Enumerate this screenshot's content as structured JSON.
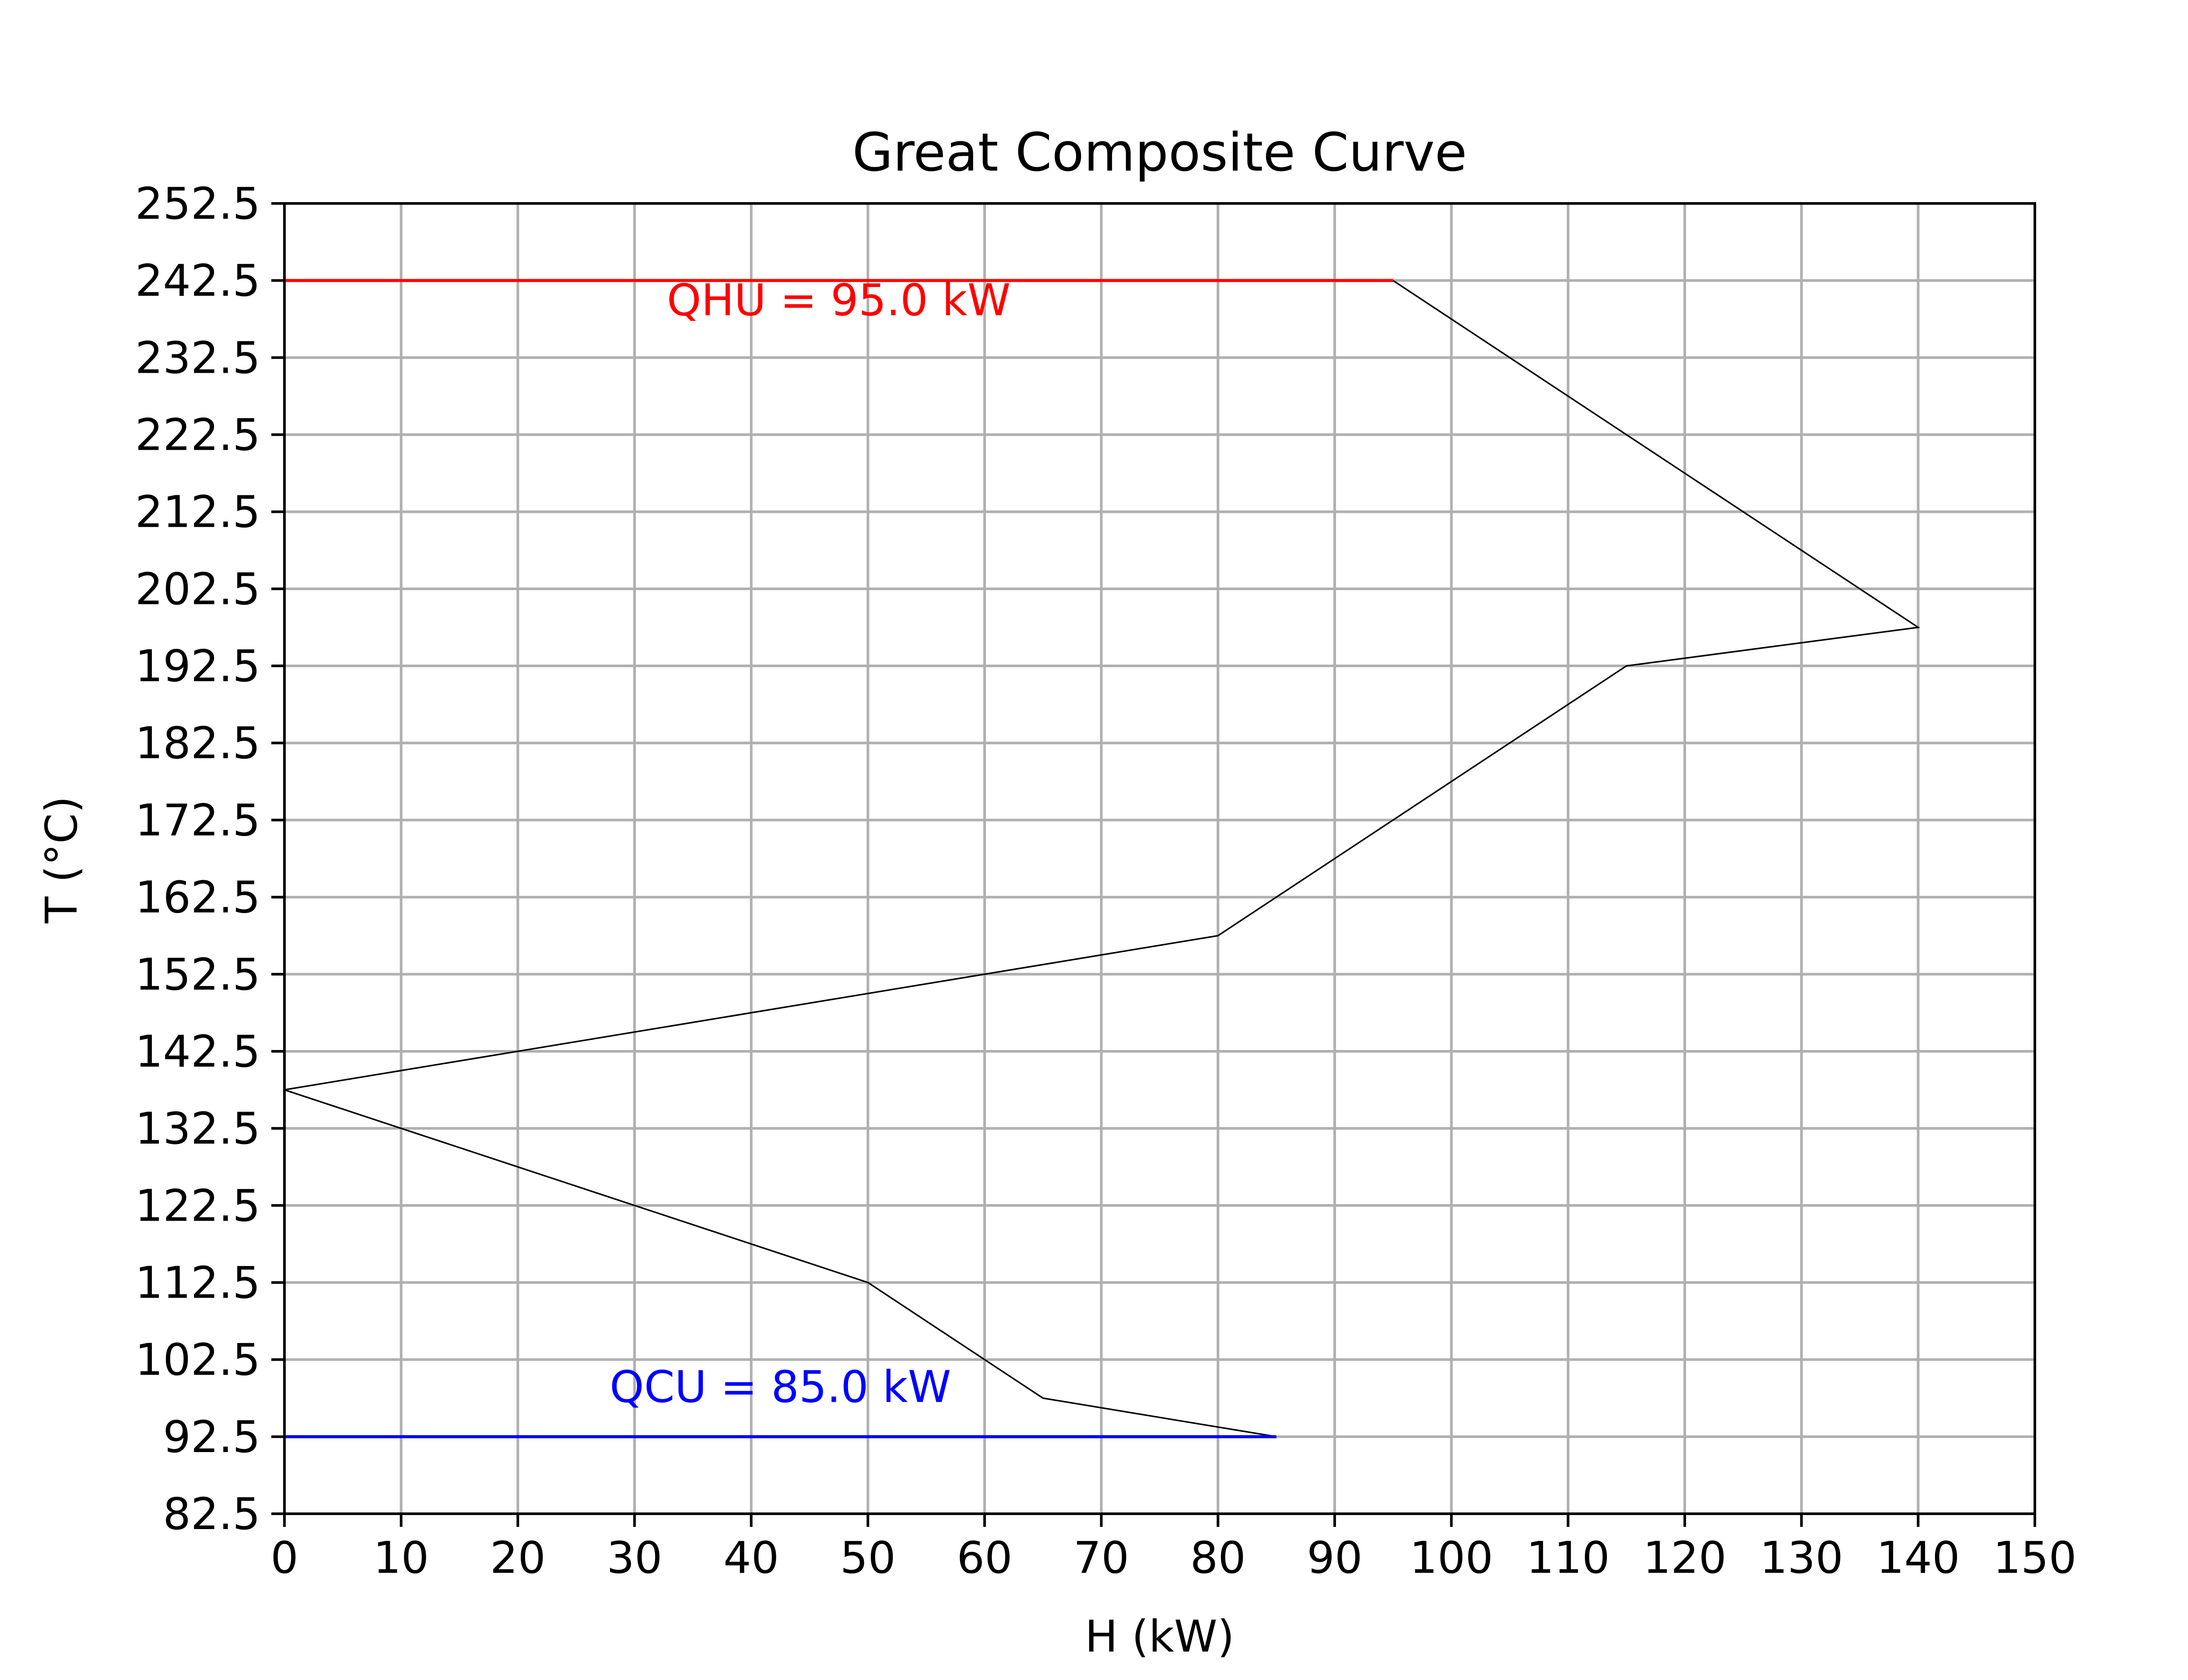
{
  "chart_data": {
    "type": "line",
    "title": "Great Composite Curve",
    "xlabel": "H (kW)",
    "ylabel": "T (°C)",
    "xlim": [
      0,
      150
    ],
    "ylim": [
      82.5,
      252.5
    ],
    "xticks": [
      0,
      10,
      20,
      30,
      40,
      50,
      60,
      70,
      80,
      90,
      100,
      110,
      120,
      130,
      140,
      150
    ],
    "yticks": [
      82.5,
      92.5,
      102.5,
      112.5,
      122.5,
      132.5,
      142.5,
      152.5,
      162.5,
      172.5,
      182.5,
      192.5,
      202.5,
      212.5,
      222.5,
      232.5,
      242.5,
      252.5
    ],
    "grid": true,
    "series": [
      {
        "color": "#000000",
        "x": [
          95,
          140,
          115,
          80,
          0,
          50,
          65,
          85
        ],
        "y": [
          242.5,
          197.5,
          192.5,
          157.5,
          137.5,
          112.5,
          97.5,
          92.5
        ]
      },
      {
        "color": "#ff0000",
        "x": [
          0,
          95
        ],
        "y": [
          242.5,
          242.5
        ]
      },
      {
        "color": "#0000ff",
        "x": [
          0,
          85
        ],
        "y": [
          92.5,
          92.5
        ]
      }
    ],
    "annotations": [
      {
        "text": "QHU = 95.0 kW",
        "x": 47.5,
        "y": 238.0,
        "color": "#ff0000"
      },
      {
        "text": "QCU = 85.0 kW",
        "x": 42.5,
        "y": 97.0,
        "color": "#0000ff"
      }
    ]
  }
}
